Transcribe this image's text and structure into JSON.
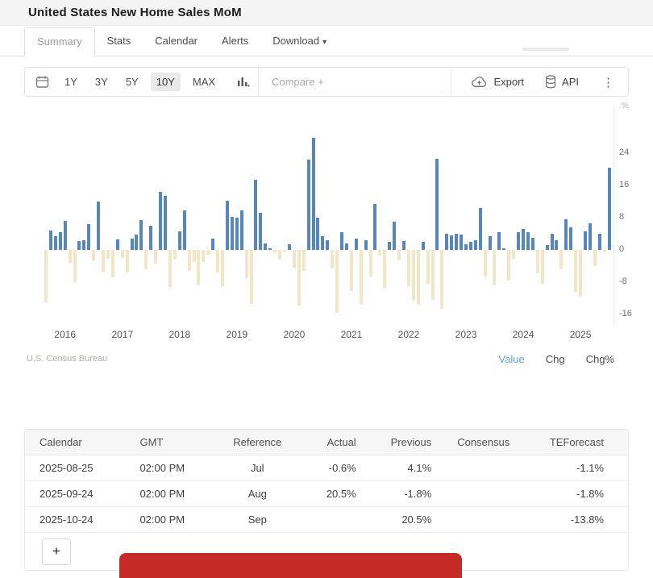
{
  "page": {
    "title": "United States New Home Sales MoM"
  },
  "tabs": [
    {
      "label": "Summary",
      "active": true
    },
    {
      "label": "Stats",
      "active": false
    },
    {
      "label": "Calendar",
      "active": false
    },
    {
      "label": "Alerts",
      "active": false
    },
    {
      "label": "Download",
      "active": false,
      "has_caret": true
    }
  ],
  "icons": {
    "caret_down": "▾",
    "kebab": "⋮",
    "plus": "+"
  },
  "toolbar": {
    "ranges": [
      "1Y",
      "3Y",
      "5Y",
      "10Y",
      "MAX"
    ],
    "active_range": "10Y",
    "compare_label": "Compare +",
    "export_label": "Export",
    "api_label": "API"
  },
  "chart": {
    "unit": "%",
    "y_ticks": [
      24,
      16,
      8,
      0,
      -8,
      -16
    ],
    "x_years": [
      2016,
      2017,
      2018,
      2019,
      2020,
      2021,
      2022,
      2023,
      2024,
      2025
    ],
    "source": "U.S. Census Bureau",
    "legend": [
      {
        "label": "Value",
        "active": true
      },
      {
        "label": "Chg",
        "active": false
      },
      {
        "label": "Chg%",
        "active": false
      }
    ],
    "colors": {
      "positive": "#5587bd",
      "negative": "#f2e6c6",
      "legend_active": "#64a5d9"
    }
  },
  "chart_data": {
    "type": "bar",
    "title": "United States New Home Sales MoM",
    "xlabel": "",
    "ylabel": "%",
    "ylim": [
      -18,
      30
    ],
    "grid": false,
    "legend_position": "bottom-right",
    "x": [
      "2015-10",
      "2015-11",
      "2015-12",
      "2016-01",
      "2016-02",
      "2016-03",
      "2016-04",
      "2016-05",
      "2016-06",
      "2016-07",
      "2016-08",
      "2016-09",
      "2016-10",
      "2016-11",
      "2016-12",
      "2017-01",
      "2017-02",
      "2017-03",
      "2017-04",
      "2017-05",
      "2017-06",
      "2017-07",
      "2017-08",
      "2017-09",
      "2017-10",
      "2017-11",
      "2017-12",
      "2018-01",
      "2018-02",
      "2018-03",
      "2018-04",
      "2018-05",
      "2018-06",
      "2018-07",
      "2018-08",
      "2018-09",
      "2018-10",
      "2018-11",
      "2018-12",
      "2019-01",
      "2019-02",
      "2019-03",
      "2019-04",
      "2019-05",
      "2019-06",
      "2019-07",
      "2019-08",
      "2019-09",
      "2019-10",
      "2019-11",
      "2019-12",
      "2020-01",
      "2020-02",
      "2020-03",
      "2020-04",
      "2020-05",
      "2020-06",
      "2020-07",
      "2020-08",
      "2020-09",
      "2020-10",
      "2020-11",
      "2020-12",
      "2021-01",
      "2021-02",
      "2021-03",
      "2021-04",
      "2021-05",
      "2021-06",
      "2021-07",
      "2021-08",
      "2021-09",
      "2021-10",
      "2021-11",
      "2021-12",
      "2022-01",
      "2022-02",
      "2022-03",
      "2022-04",
      "2022-05",
      "2022-06",
      "2022-07",
      "2022-08",
      "2022-09",
      "2022-10",
      "2022-11",
      "2022-12",
      "2023-01",
      "2023-02",
      "2023-03",
      "2023-04",
      "2023-05",
      "2023-06",
      "2023-07",
      "2023-08",
      "2023-09",
      "2023-10",
      "2023-11",
      "2023-12",
      "2024-01",
      "2024-02",
      "2024-03",
      "2024-04",
      "2024-05",
      "2024-06",
      "2024-07",
      "2024-08",
      "2024-09",
      "2024-10",
      "2024-11",
      "2024-12",
      "2025-01",
      "2025-02",
      "2025-03",
      "2025-04",
      "2025-05",
      "2025-06",
      "2025-07",
      "2025-08"
    ],
    "values": [
      -12.9,
      4.8,
      3.4,
      4.5,
      7.2,
      -3.2,
      -8.0,
      2.2,
      2.4,
      6.4,
      -2.5,
      12.1,
      -5.4,
      -2.1,
      -6.8,
      2.6,
      -1.9,
      -5.6,
      2.9,
      3.8,
      7.5,
      -4.7,
      6.1,
      -3.3,
      14.5,
      13.4,
      -9.2,
      -2.4,
      4.7,
      9.8,
      -5.2,
      -2.9,
      -8.8,
      -3.0,
      -1.1,
      2.8,
      -5.5,
      -8.9,
      12.2,
      8.2,
      8.1,
      9.9,
      -6.9,
      -13.3,
      17.4,
      9.2,
      1.7,
      0.4,
      -0.7,
      -2.3,
      -0.4,
      1.5,
      -4.4,
      -13.7,
      -5.2,
      22.4,
      27.8,
      8.1,
      3.4,
      2.5,
      -4.6,
      -15.6,
      4.4,
      1.7,
      -10.2,
      2.9,
      -13.4,
      2.5,
      -6.6,
      11.4,
      -1.3,
      -9.3,
      2.0,
      7.0,
      -2.5,
      2.2,
      -9.0,
      -12.6,
      -13.6,
      2.0,
      -8.4,
      -12.4,
      22.7,
      -14.6,
      4.1,
      3.7,
      4.0,
      3.8,
      1.5,
      2.0,
      2.5,
      10.5,
      -6.5,
      3.5,
      -8.7,
      4.4,
      0.5,
      -7.5,
      -2.1,
      4.5,
      5.3,
      4.5,
      3.0,
      -5.8,
      -8.3,
      1.2,
      4.0,
      2.5,
      -4.6,
      7.7,
      5.7,
      -10.4,
      -11.6,
      4.6,
      6.6,
      -4.0,
      4.1,
      -0.6,
      20.5
    ]
  },
  "table": {
    "columns": [
      {
        "label": "Calendar",
        "align": "l"
      },
      {
        "label": "GMT",
        "align": "l"
      },
      {
        "label": "Reference",
        "align": "c"
      },
      {
        "label": "Actual",
        "align": "r"
      },
      {
        "label": "Previous",
        "align": "r"
      },
      {
        "label": "Consensus",
        "align": "c"
      },
      {
        "label": "TEForecast",
        "align": "r"
      }
    ],
    "rows": [
      [
        "2025-08-25",
        "02:00 PM",
        "Jul",
        "-0.6%",
        "4.1%",
        "",
        "-1.1%"
      ],
      [
        "2025-09-24",
        "02:00 PM",
        "Aug",
        "20.5%",
        "-1.8%",
        "",
        "-1.8%"
      ],
      [
        "2025-10-24",
        "02:00 PM",
        "Sep",
        "",
        "20.5%",
        "",
        "-13.8%"
      ]
    ]
  }
}
